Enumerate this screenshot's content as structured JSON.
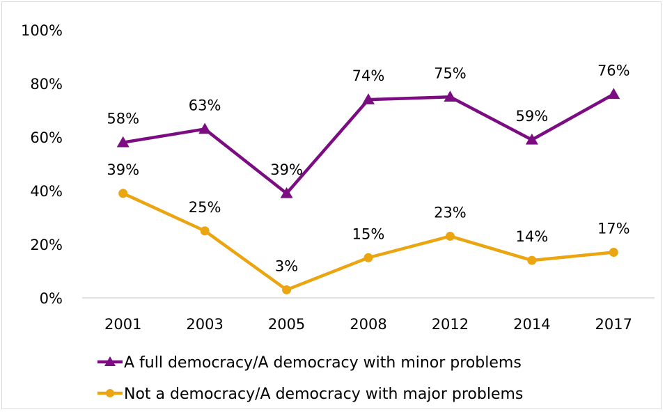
{
  "chart_data": {
    "type": "line",
    "title": "",
    "xlabel": "",
    "ylabel": "",
    "categories": [
      "2001",
      "2003",
      "2005",
      "2008",
      "2012",
      "2014",
      "2017"
    ],
    "ylim": [
      0,
      100
    ],
    "yticks": [
      "0%",
      "20%",
      "40%",
      "60%",
      "80%",
      "100%"
    ],
    "grid": false,
    "legend_position": "bottom",
    "series": [
      {
        "name": "A full democracy/A democracy with minor problems",
        "values": [
          58,
          63,
          39,
          74,
          75,
          59,
          76
        ],
        "labels": [
          "58%",
          "63%",
          "39%",
          "74%",
          "75%",
          "59%",
          "76%"
        ],
        "color": "#7b0c82",
        "marker": "triangle"
      },
      {
        "name": "Not a democracy/A democracy with major problems",
        "values": [
          39,
          25,
          3,
          15,
          23,
          14,
          17
        ],
        "labels": [
          "39%",
          "25%",
          "3%",
          "15%",
          "23%",
          "14%",
          "17%"
        ],
        "color": "#eaa511",
        "marker": "circle"
      }
    ]
  }
}
